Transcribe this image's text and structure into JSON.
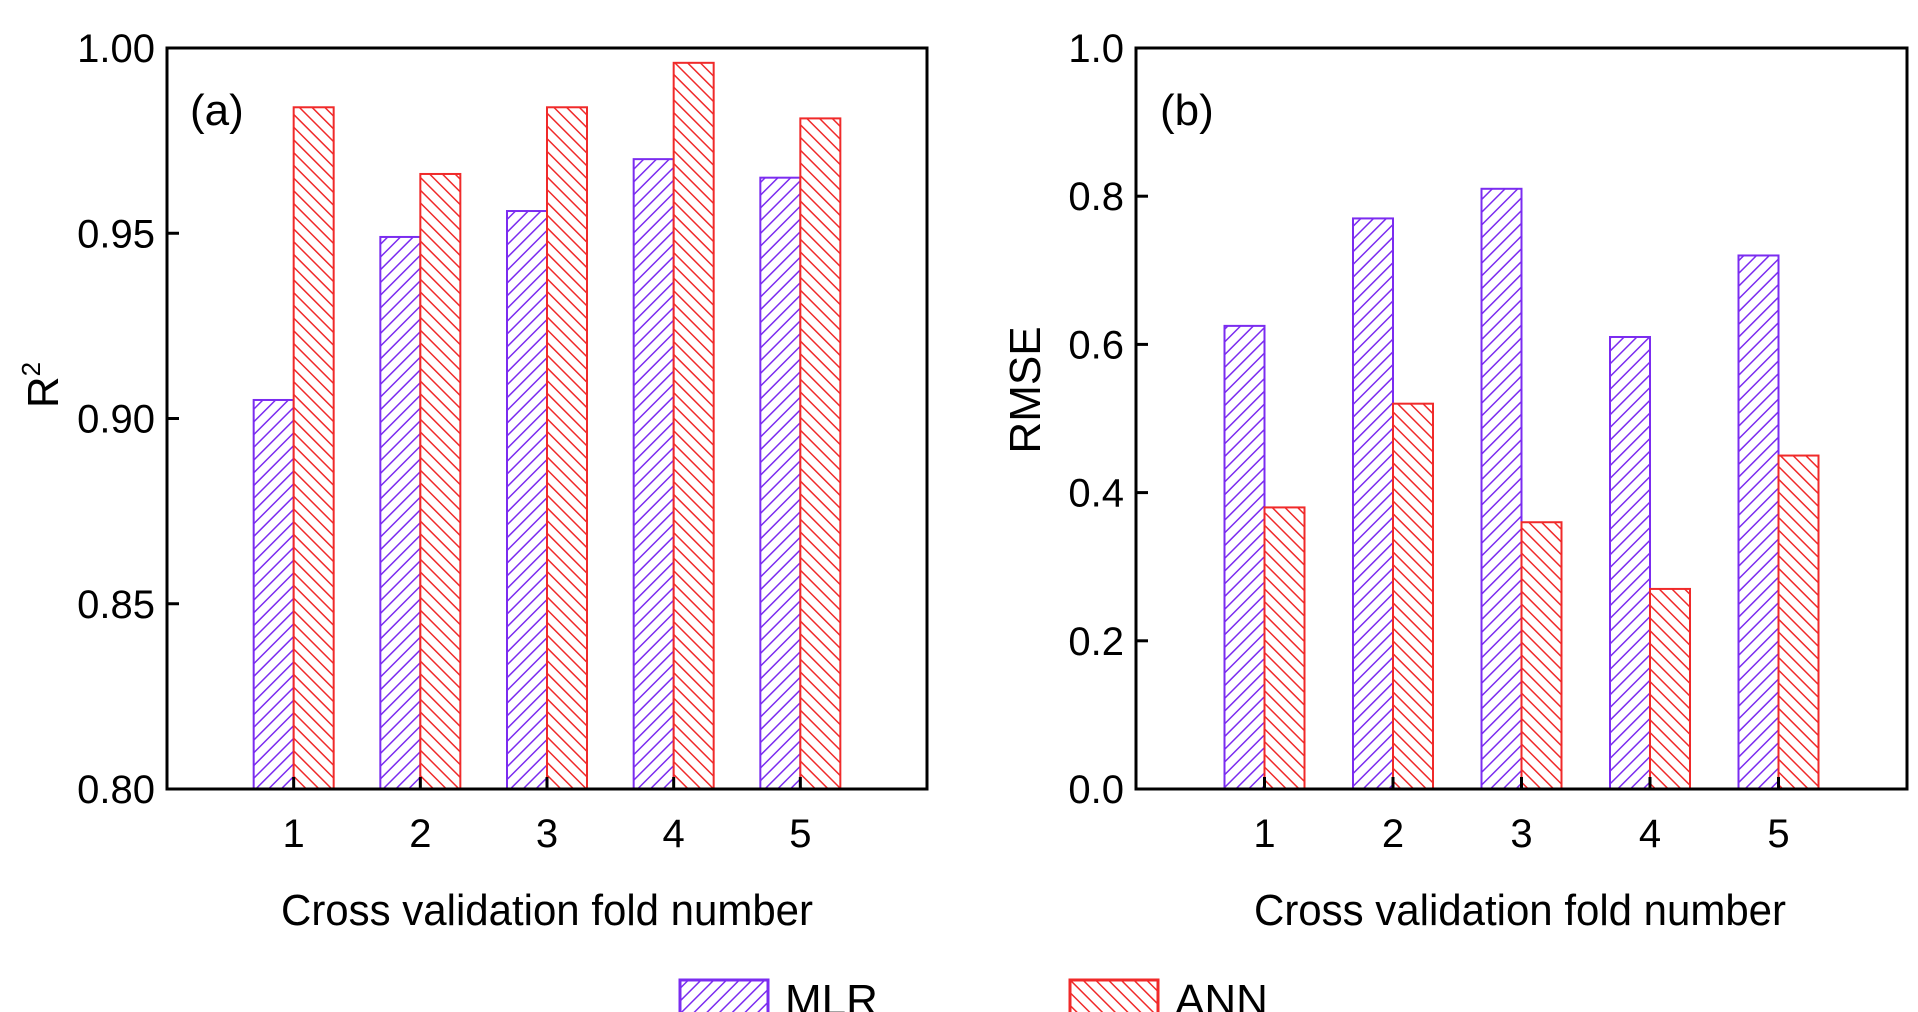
{
  "chart_data": [
    {
      "type": "bar",
      "panel_label": "(a)",
      "title": "",
      "xlabel": "Cross validation fold number",
      "ylabel": "R",
      "ylabel_superscript": "2",
      "categories": [
        "1",
        "2",
        "3",
        "4",
        "5"
      ],
      "ylim": [
        0.8,
        1.0
      ],
      "yticks": [
        0.8,
        0.85,
        0.9,
        0.95,
        1.0
      ],
      "ytick_labels": [
        "0.80",
        "0.85",
        "0.90",
        "0.95",
        "1.00"
      ],
      "grid": false,
      "series": [
        {
          "name": "MLR",
          "color": "#7b2cf0",
          "hatch": "forward-diagonal",
          "values": [
            0.905,
            0.949,
            0.956,
            0.97,
            0.965
          ]
        },
        {
          "name": "ANN",
          "color": "#f02a2a",
          "hatch": "back-diagonal",
          "values": [
            0.984,
            0.966,
            0.984,
            0.996,
            0.981
          ]
        }
      ]
    },
    {
      "type": "bar",
      "panel_label": "(b)",
      "title": "",
      "xlabel": "Cross validation fold number",
      "ylabel": "RMSE",
      "categories": [
        "1",
        "2",
        "3",
        "4",
        "5"
      ],
      "ylim": [
        0.0,
        1.0
      ],
      "yticks": [
        0.0,
        0.2,
        0.4,
        0.6,
        0.8,
        1.0
      ],
      "ytick_labels": [
        "0.0",
        "0.2",
        "0.4",
        "0.6",
        "0.8",
        "1.0"
      ],
      "grid": false,
      "series": [
        {
          "name": "MLR",
          "color": "#7b2cf0",
          "hatch": "forward-diagonal",
          "values": [
            0.625,
            0.77,
            0.81,
            0.61,
            0.72
          ]
        },
        {
          "name": "ANN",
          "color": "#f02a2a",
          "hatch": "back-diagonal",
          "values": [
            0.38,
            0.52,
            0.36,
            0.27,
            0.45
          ]
        }
      ]
    }
  ],
  "legend": {
    "placement": "bottom-center",
    "items": [
      {
        "label": "MLR",
        "color": "#7b2cf0",
        "hatch": "forward-diagonal"
      },
      {
        "label": "ANN",
        "color": "#f02a2a",
        "hatch": "back-diagonal"
      }
    ]
  }
}
